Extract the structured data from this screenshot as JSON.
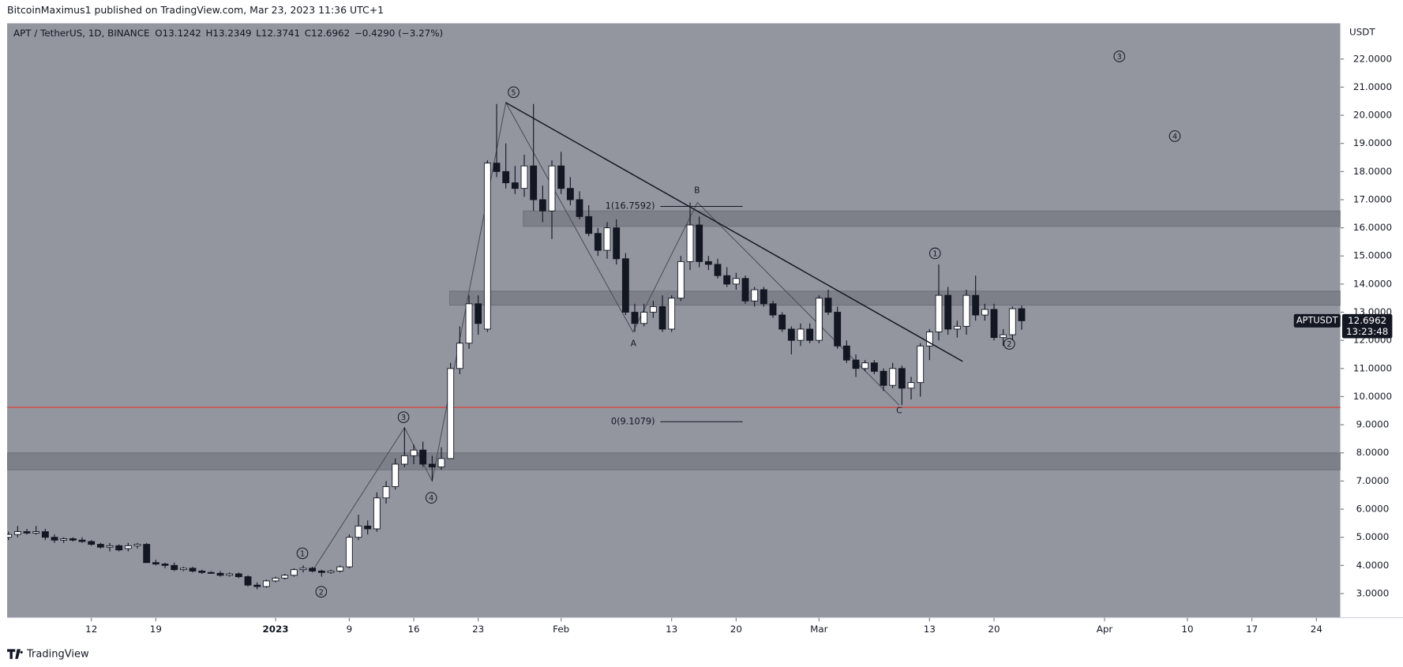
{
  "chart_data": {
    "type": "candlestick",
    "published": "BitcoinMaximus1 published on TradingView.com, Mar 23, 2023 11:36 UTC+1",
    "symbol": "APT / TetherUS, 1D, BINANCE",
    "ohlc_keys": [
      "O",
      "H",
      "L",
      "C"
    ],
    "change": "−0.4290 (−3.27%)",
    "ticker": "APTUSDT",
    "countdown": "13:23:48",
    "axis_unit": "USDT",
    "brand": "TradingView",
    "ohlc": [
      [
        5.0,
        5.2,
        4.9,
        5.1
      ],
      [
        5.1,
        5.4,
        5.0,
        5.2
      ],
      [
        5.2,
        5.3,
        5.1,
        5.15
      ],
      [
        5.15,
        5.4,
        5.1,
        5.2
      ],
      [
        5.2,
        5.3,
        4.9,
        5.0
      ],
      [
        5.0,
        5.1,
        4.8,
        4.9
      ],
      [
        4.9,
        5.0,
        4.8,
        4.95
      ],
      [
        4.95,
        5.0,
        4.85,
        4.9
      ],
      [
        4.9,
        5.0,
        4.8,
        4.85
      ],
      [
        4.85,
        4.9,
        4.7,
        4.75
      ],
      [
        4.75,
        4.8,
        4.6,
        4.65
      ],
      [
        4.65,
        4.8,
        4.5,
        4.7
      ],
      [
        4.7,
        4.75,
        4.5,
        4.55
      ],
      [
        4.6,
        4.8,
        4.5,
        4.7
      ],
      [
        4.7,
        4.8,
        4.6,
        4.75
      ],
      [
        4.75,
        4.8,
        4.1,
        4.1
      ],
      [
        4.1,
        4.2,
        4.0,
        4.05
      ],
      [
        4.05,
        4.1,
        3.9,
        4.0
      ],
      [
        4.0,
        4.1,
        3.8,
        3.85
      ],
      [
        3.85,
        3.95,
        3.8,
        3.9
      ],
      [
        3.9,
        3.95,
        3.75,
        3.8
      ],
      [
        3.8,
        3.85,
        3.7,
        3.75
      ],
      [
        3.75,
        3.8,
        3.7,
        3.72
      ],
      [
        3.72,
        3.8,
        3.6,
        3.65
      ],
      [
        3.65,
        3.75,
        3.6,
        3.7
      ],
      [
        3.7,
        3.75,
        3.55,
        3.6
      ],
      [
        3.6,
        3.65,
        3.25,
        3.3
      ],
      [
        3.3,
        3.4,
        3.15,
        3.25
      ],
      [
        3.25,
        3.5,
        3.2,
        3.45
      ],
      [
        3.45,
        3.6,
        3.4,
        3.55
      ],
      [
        3.55,
        3.7,
        3.5,
        3.65
      ],
      [
        3.65,
        3.9,
        3.6,
        3.85
      ],
      [
        3.85,
        4.0,
        3.75,
        3.9
      ],
      [
        3.9,
        3.95,
        3.75,
        3.8
      ],
      [
        3.8,
        3.85,
        3.6,
        3.75
      ],
      [
        3.75,
        3.85,
        3.7,
        3.8
      ],
      [
        3.8,
        4.0,
        3.75,
        3.95
      ],
      [
        3.95,
        5.1,
        3.9,
        5.0
      ],
      [
        5.0,
        5.8,
        4.9,
        5.4
      ],
      [
        5.4,
        5.6,
        5.1,
        5.3
      ],
      [
        5.3,
        6.6,
        5.2,
        6.4
      ],
      [
        6.4,
        7.0,
        6.2,
        6.8
      ],
      [
        6.8,
        7.8,
        6.7,
        7.6
      ],
      [
        7.6,
        8.9,
        7.5,
        7.9
      ],
      [
        7.9,
        8.3,
        7.6,
        8.1
      ],
      [
        8.1,
        8.4,
        7.5,
        7.6
      ],
      [
        7.6,
        7.9,
        7.0,
        7.5
      ],
      [
        7.5,
        8.2,
        7.4,
        7.8
      ],
      [
        7.8,
        11.2,
        7.8,
        11.0
      ],
      [
        11.0,
        12.5,
        10.8,
        11.9
      ],
      [
        11.9,
        13.6,
        11.7,
        13.3
      ],
      [
        13.3,
        13.6,
        12.2,
        12.6
      ],
      [
        12.4,
        18.4,
        12.3,
        18.3
      ],
      [
        18.3,
        20.4,
        17.8,
        18.0
      ],
      [
        18.0,
        19.0,
        17.4,
        17.6
      ],
      [
        17.6,
        18.2,
        17.2,
        17.4
      ],
      [
        17.4,
        18.6,
        17.1,
        18.2
      ],
      [
        18.2,
        20.4,
        16.6,
        17.0
      ],
      [
        17.0,
        17.5,
        16.2,
        16.6
      ],
      [
        16.6,
        18.4,
        15.6,
        18.2
      ],
      [
        18.2,
        18.7,
        17.2,
        17.4
      ],
      [
        17.4,
        17.8,
        16.8,
        17.0
      ],
      [
        17.0,
        17.3,
        16.3,
        16.4
      ],
      [
        16.4,
        16.8,
        15.7,
        15.8
      ],
      [
        15.8,
        16.0,
        15.0,
        15.2
      ],
      [
        15.2,
        16.2,
        14.9,
        16.0
      ],
      [
        16.0,
        16.3,
        14.7,
        14.9
      ],
      [
        14.9,
        15.1,
        12.9,
        13.0
      ],
      [
        13.0,
        13.3,
        12.3,
        12.6
      ],
      [
        12.6,
        13.3,
        12.5,
        13.0
      ],
      [
        13.0,
        13.4,
        12.8,
        13.2
      ],
      [
        13.2,
        13.6,
        12.3,
        12.4
      ],
      [
        12.4,
        13.6,
        12.3,
        13.5
      ],
      [
        13.5,
        15.0,
        13.4,
        14.8
      ],
      [
        14.8,
        16.9,
        14.5,
        16.1
      ],
      [
        16.1,
        16.4,
        14.6,
        14.8
      ],
      [
        14.8,
        15.0,
        14.5,
        14.7
      ],
      [
        14.7,
        14.9,
        14.2,
        14.3
      ],
      [
        14.3,
        14.6,
        13.9,
        14.0
      ],
      [
        14.0,
        14.4,
        13.8,
        14.2
      ],
      [
        14.2,
        14.3,
        13.3,
        13.4
      ],
      [
        13.4,
        13.9,
        13.2,
        13.8
      ],
      [
        13.8,
        13.9,
        13.2,
        13.3
      ],
      [
        13.3,
        13.4,
        12.8,
        12.9
      ],
      [
        12.9,
        13.0,
        12.3,
        12.4
      ],
      [
        12.4,
        12.5,
        11.5,
        12.0
      ],
      [
        12.0,
        12.6,
        11.8,
        12.4
      ],
      [
        12.4,
        12.6,
        11.9,
        12.0
      ],
      [
        12.0,
        13.6,
        11.9,
        13.5
      ],
      [
        13.5,
        13.8,
        12.9,
        13.0
      ],
      [
        13.0,
        13.2,
        11.7,
        11.8
      ],
      [
        11.8,
        12.0,
        11.2,
        11.3
      ],
      [
        11.3,
        11.5,
        10.7,
        11.0
      ],
      [
        11.0,
        11.3,
        10.9,
        11.2
      ],
      [
        11.2,
        11.3,
        10.8,
        10.9
      ],
      [
        10.9,
        11.0,
        10.2,
        10.4
      ],
      [
        10.4,
        11.2,
        10.3,
        11.0
      ],
      [
        11.0,
        11.1,
        9.7,
        10.3
      ],
      [
        10.3,
        10.7,
        9.9,
        10.5
      ],
      [
        10.5,
        11.9,
        10.0,
        11.8
      ],
      [
        11.8,
        12.4,
        11.3,
        12.3
      ],
      [
        12.3,
        14.7,
        12.0,
        13.6
      ],
      [
        13.6,
        13.9,
        12.2,
        12.4
      ],
      [
        12.4,
        12.7,
        12.1,
        12.5
      ],
      [
        12.5,
        13.8,
        12.2,
        13.6
      ],
      [
        13.6,
        14.3,
        12.7,
        12.9
      ],
      [
        12.9,
        13.3,
        12.7,
        13.1
      ],
      [
        13.1,
        13.3,
        12.0,
        12.1
      ],
      [
        12.1,
        12.4,
        11.8,
        12.2
      ],
      [
        12.2,
        13.2,
        12.0,
        13.1242
      ],
      [
        13.1242,
        13.2349,
        12.3741,
        12.6962
      ]
    ],
    "xlim": [
      -0.14,
      144.6
    ],
    "xticks": [
      {
        "value": 9,
        "label": "12"
      },
      {
        "value": 16,
        "label": "19"
      },
      {
        "value": 29,
        "label": "2023"
      },
      {
        "value": 37,
        "label": "9"
      },
      {
        "value": 44,
        "label": "16"
      },
      {
        "value": 51,
        "label": "23"
      },
      {
        "value": 60,
        "label": "Feb"
      },
      {
        "value": 72,
        "label": "13"
      },
      {
        "value": 79,
        "label": "20"
      },
      {
        "value": 88,
        "label": "Mar"
      },
      {
        "value": 100,
        "label": "13"
      },
      {
        "value": 107,
        "label": "20"
      },
      {
        "value": 119,
        "label": "Apr"
      },
      {
        "value": 128,
        "label": "10"
      },
      {
        "value": 135,
        "label": "17"
      },
      {
        "value": 142,
        "label": "24"
      }
    ],
    "ylim": [
      2.14,
      23.27
    ],
    "yticks": [
      {
        "value": 3,
        "label": "3.0000"
      },
      {
        "value": 4,
        "label": "4.0000"
      },
      {
        "value": 5,
        "label": "5.0000"
      },
      {
        "value": 6,
        "label": "6.0000"
      },
      {
        "value": 7,
        "label": "7.0000"
      },
      {
        "value": 8,
        "label": "8.0000"
      },
      {
        "value": 9,
        "label": "9.0000"
      },
      {
        "value": 10,
        "label": "10.0000"
      },
      {
        "value": 11,
        "label": "11.0000"
      },
      {
        "value": 12,
        "label": "12.0000"
      },
      {
        "value": 13,
        "label": "13.0000"
      },
      {
        "value": 14,
        "label": "14.0000"
      },
      {
        "value": 15,
        "label": "15.0000"
      },
      {
        "value": 16,
        "label": "16.0000"
      },
      {
        "value": 17,
        "label": "17.0000"
      },
      {
        "value": 18,
        "label": "18.0000"
      },
      {
        "value": 19,
        "label": "19.0000"
      },
      {
        "value": 20,
        "label": "20.0000"
      },
      {
        "value": 21,
        "label": "21.0000"
      },
      {
        "value": 22,
        "label": "22.0000"
      }
    ],
    "zones": [
      {
        "low": 16.05,
        "high": 16.6
      },
      {
        "low": 13.25,
        "high": 13.75
      },
      {
        "low": 7.4,
        "high": 8.0
      }
    ],
    "support_level": 9.62,
    "trendline": {
      "x": [
        54,
        103.6
      ],
      "y": [
        20.45,
        11.25
      ]
    },
    "wave_path": {
      "x": [
        33,
        43,
        46,
        54,
        67.8,
        74.8,
        96.7
      ],
      "y": [
        3.8,
        8.9,
        7.0,
        20.45,
        12.3,
        16.9,
        9.7
      ]
    },
    "fib_levels": [
      {
        "value": 16.7592,
        "label": "1(16.7592)"
      },
      {
        "value": 9.1079,
        "label": "0(9.1079)"
      }
    ],
    "wave_labels": [
      "5",
      "3",
      "4",
      "1",
      "2",
      "3",
      "4",
      "1",
      "2"
    ],
    "letters": [
      "A",
      "B",
      "C"
    ]
  }
}
